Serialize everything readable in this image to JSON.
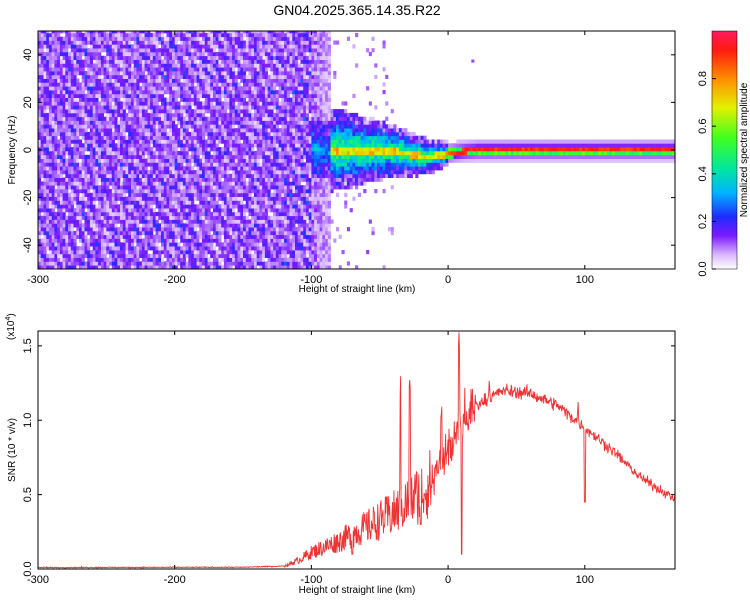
{
  "title": "GN04.2025.365.14.35.R22",
  "chart_data": [
    {
      "type": "heatmap",
      "name": "spectrogram",
      "xlabel": "Height of straight line (km)",
      "ylabel": "Frequency (Hz)",
      "xlim": [
        -300,
        166
      ],
      "ylim": [
        -50,
        50
      ],
      "xticks": [
        -300,
        -200,
        -100,
        0,
        100
      ],
      "yticks": [
        -40,
        -20,
        0,
        20,
        40
      ],
      "x_tick_labels": [
        "-300",
        "-200",
        "-100",
        "0",
        "100"
      ],
      "y_tick_labels": [
        "-40",
        "-20",
        "0",
        "20",
        "40"
      ],
      "description_regions": [
        {
          "x_range": [
            -300,
            -100
          ],
          "f_range": [
            -50,
            50
          ],
          "amplitude": 0.15,
          "pattern": "noise"
        },
        {
          "x_range": [
            -110,
            0
          ],
          "f_range": [
            -10,
            10
          ],
          "amplitude": 0.4,
          "pattern": "converging"
        },
        {
          "x_range": [
            0,
            166
          ],
          "f_range": [
            -2,
            2
          ],
          "amplitude": 0.95,
          "pattern": "narrow-line"
        }
      ],
      "colorbar": {
        "label": "Normalized spectral amplitude",
        "range": [
          0.0,
          1.0
        ],
        "ticks": [
          0.0,
          0.2,
          0.4,
          0.6,
          0.8
        ],
        "tick_labels": [
          "0.0",
          "0.2",
          "0.4",
          "0.6",
          "0.8"
        ]
      }
    },
    {
      "type": "line",
      "name": "snr",
      "xlabel": "Height of straight line (km)",
      "ylabel": "SNR (10 * v/v)",
      "multiplier": "(x10",
      "multiplier_exp": "4",
      "multiplier_close": ")",
      "xlim": [
        -300,
        166
      ],
      "ylim": [
        0,
        1.6
      ],
      "xticks": [
        -300,
        -200,
        -100,
        0,
        100
      ],
      "yticks": [
        0.0,
        0.5,
        1.0,
        1.5
      ],
      "x_tick_labels": [
        "-300",
        "-200",
        "-100",
        "0",
        "100"
      ],
      "y_tick_labels": [
        "0.0",
        "0.5",
        "1.0",
        "1.5"
      ],
      "line_color": "#ee3333",
      "envelope": {
        "x": [
          -300,
          -150,
          -120,
          -110,
          -100,
          -80,
          -60,
          -40,
          -20,
          -10,
          0,
          10,
          20,
          40,
          60,
          80,
          100,
          120,
          140,
          166
        ],
        "y": [
          0.01,
          0.012,
          0.02,
          0.06,
          0.12,
          0.2,
          0.3,
          0.4,
          0.55,
          0.65,
          0.8,
          0.95,
          1.1,
          1.2,
          1.18,
          1.1,
          0.95,
          0.8,
          0.62,
          0.47
        ]
      }
    }
  ]
}
